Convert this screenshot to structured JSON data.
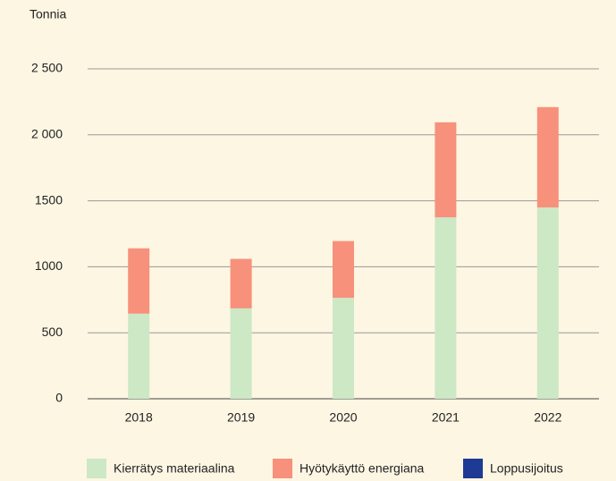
{
  "chart_data": {
    "type": "stacked_bar",
    "y_axis_label": "Tonnia",
    "categories": [
      "2018",
      "2019",
      "2020",
      "2021",
      "2022"
    ],
    "series": [
      {
        "name": "Kierrätys materiaalina",
        "color": "#cce8c5",
        "values": [
          645,
          685,
          765,
          1375,
          1450
        ]
      },
      {
        "name": "Hyötykäyttö energiana",
        "color": "#f7917b",
        "values": [
          495,
          375,
          430,
          720,
          760
        ]
      },
      {
        "name": "Loppusijoitus",
        "color": "#1e3a94",
        "values": [
          0,
          0,
          0,
          0,
          0
        ]
      }
    ],
    "ylim": [
      0,
      2500
    ],
    "yticks": [
      0,
      500,
      1000,
      1500,
      {
        "value": 2000,
        "label": "2 000"
      },
      {
        "value": 2500,
        "label": "2 500"
      }
    ],
    "grid": true,
    "legend": "bottom"
  }
}
